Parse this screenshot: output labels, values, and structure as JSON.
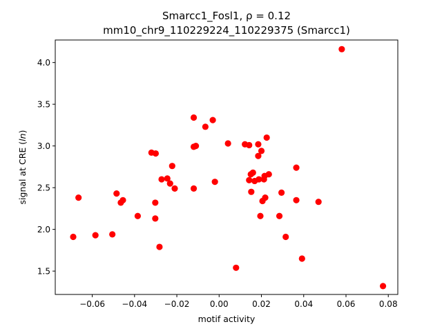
{
  "chart_data": {
    "type": "scatter",
    "title_line1": "Smarcc1_Fosl1, ρ = 0.12",
    "title_line2": "mm10_chr9_110229224_110229375 (Smarcc1)",
    "xlabel": "motif activity",
    "ylabel_prefix": "signal at CRE (",
    "ylabel_italic": "ln",
    "ylabel_suffix": ")",
    "xlim": [
      -0.0775,
      0.0845
    ],
    "ylim": [
      1.22,
      4.27
    ],
    "xticks": [
      -0.06,
      -0.04,
      -0.02,
      0.0,
      0.02,
      0.04,
      0.06,
      0.08
    ],
    "xtick_labels": [
      "−0.06",
      "−0.04",
      "−0.02",
      "0.00",
      "0.02",
      "0.04",
      "0.06",
      "0.08"
    ],
    "yticks": [
      1.5,
      2.0,
      2.5,
      3.0,
      3.5,
      4.0
    ],
    "ytick_labels": [
      "1.5",
      "2.0",
      "2.5",
      "3.0",
      "3.5",
      "4.0"
    ],
    "marker_color": "#ff0000",
    "grid": false,
    "points": [
      {
        "x": -0.069,
        "y": 1.91
      },
      {
        "x": -0.0665,
        "y": 2.38
      },
      {
        "x": -0.0585,
        "y": 1.93
      },
      {
        "x": -0.0505,
        "y": 1.94
      },
      {
        "x": -0.0485,
        "y": 2.43
      },
      {
        "x": -0.0465,
        "y": 2.32
      },
      {
        "x": -0.0455,
        "y": 2.35
      },
      {
        "x": -0.0385,
        "y": 2.16
      },
      {
        "x": -0.032,
        "y": 2.92
      },
      {
        "x": -0.03,
        "y": 2.91
      },
      {
        "x": -0.0302,
        "y": 2.32
      },
      {
        "x": -0.0302,
        "y": 2.13
      },
      {
        "x": -0.0282,
        "y": 1.79
      },
      {
        "x": -0.0272,
        "y": 2.6
      },
      {
        "x": -0.0245,
        "y": 2.61
      },
      {
        "x": -0.0232,
        "y": 2.55
      },
      {
        "x": -0.0222,
        "y": 2.76
      },
      {
        "x": -0.021,
        "y": 2.49
      },
      {
        "x": -0.012,
        "y": 3.34
      },
      {
        "x": -0.012,
        "y": 2.99
      },
      {
        "x": -0.011,
        "y": 3.0
      },
      {
        "x": -0.012,
        "y": 2.49
      },
      {
        "x": -0.0065,
        "y": 3.23
      },
      {
        "x": -0.003,
        "y": 3.31
      },
      {
        "x": -0.002,
        "y": 2.57
      },
      {
        "x": 0.0042,
        "y": 3.03
      },
      {
        "x": 0.008,
        "y": 1.54
      },
      {
        "x": 0.0122,
        "y": 3.02
      },
      {
        "x": 0.0142,
        "y": 3.01
      },
      {
        "x": 0.0142,
        "y": 2.59
      },
      {
        "x": 0.015,
        "y": 2.66
      },
      {
        "x": 0.0152,
        "y": 2.45
      },
      {
        "x": 0.016,
        "y": 2.68
      },
      {
        "x": 0.0168,
        "y": 2.58
      },
      {
        "x": 0.0185,
        "y": 3.02
      },
      {
        "x": 0.0185,
        "y": 2.88
      },
      {
        "x": 0.0188,
        "y": 2.6
      },
      {
        "x": 0.0195,
        "y": 2.16
      },
      {
        "x": 0.02,
        "y": 2.94
      },
      {
        "x": 0.0205,
        "y": 2.34
      },
      {
        "x": 0.0212,
        "y": 2.6
      },
      {
        "x": 0.0215,
        "y": 2.64
      },
      {
        "x": 0.0218,
        "y": 2.38
      },
      {
        "x": 0.0225,
        "y": 3.1
      },
      {
        "x": 0.0235,
        "y": 2.66
      },
      {
        "x": 0.0285,
        "y": 2.16
      },
      {
        "x": 0.0295,
        "y": 2.44
      },
      {
        "x": 0.0315,
        "y": 1.91
      },
      {
        "x": 0.0365,
        "y": 2.74
      },
      {
        "x": 0.0365,
        "y": 2.35
      },
      {
        "x": 0.0392,
        "y": 1.65
      },
      {
        "x": 0.047,
        "y": 2.33
      },
      {
        "x": 0.058,
        "y": 4.16
      },
      {
        "x": 0.0775,
        "y": 1.32
      }
    ]
  }
}
